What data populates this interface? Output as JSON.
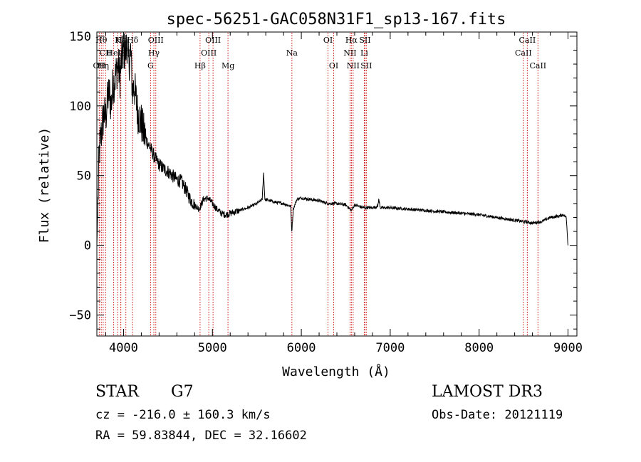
{
  "chart_data": {
    "type": "line",
    "title": "spec-56251-GAC058N31F1_sp13-167.fits",
    "xlabel": "Wavelength (Å)",
    "ylabel": "Flux (relative)",
    "xlim": [
      3700,
      9100
    ],
    "ylim": [
      -65,
      153
    ],
    "xticks": [
      4000,
      5000,
      6000,
      7000,
      8000,
      9000
    ],
    "yticks": [
      -50,
      0,
      50,
      100,
      150
    ],
    "x_minor_step": 200,
    "y_minor_step": 10,
    "grid": false,
    "spectrum_anchor_points": [
      [
        3700,
        0
      ],
      [
        3712,
        30
      ],
      [
        3725,
        65
      ],
      [
        3740,
        75
      ],
      [
        3760,
        85
      ],
      [
        3780,
        95
      ],
      [
        3800,
        92
      ],
      [
        3820,
        105
      ],
      [
        3840,
        110
      ],
      [
        3860,
        100
      ],
      [
        3880,
        115
      ],
      [
        3900,
        118
      ],
      [
        3920,
        125
      ],
      [
        3940,
        130
      ],
      [
        3960,
        120
      ],
      [
        3980,
        135
      ],
      [
        4000,
        140
      ],
      [
        4020,
        138
      ],
      [
        4040,
        145
      ],
      [
        4060,
        130
      ],
      [
        4080,
        140
      ],
      [
        4100,
        110
      ],
      [
        4120,
        115
      ],
      [
        4140,
        105
      ],
      [
        4160,
        95
      ],
      [
        4180,
        92
      ],
      [
        4200,
        88
      ],
      [
        4230,
        80
      ],
      [
        4260,
        75
      ],
      [
        4300,
        70
      ],
      [
        4350,
        63
      ],
      [
        4400,
        58
      ],
      [
        4450,
        55
      ],
      [
        4500,
        53
      ],
      [
        4550,
        50
      ],
      [
        4600,
        47
      ],
      [
        4650,
        46
      ],
      [
        4700,
        40
      ],
      [
        4750,
        33
      ],
      [
        4800,
        29
      ],
      [
        4850,
        26
      ],
      [
        4900,
        33
      ],
      [
        4950,
        34
      ],
      [
        5000,
        30
      ],
      [
        5050,
        26
      ],
      [
        5100,
        23
      ],
      [
        5150,
        22
      ],
      [
        5200,
        23
      ],
      [
        5300,
        25
      ],
      [
        5400,
        27
      ],
      [
        5500,
        30
      ],
      [
        5560,
        33
      ],
      [
        5575,
        52
      ],
      [
        5590,
        33
      ],
      [
        5700,
        31
      ],
      [
        5800,
        30
      ],
      [
        5880,
        28
      ],
      [
        5893,
        10
      ],
      [
        5910,
        26
      ],
      [
        5950,
        33
      ],
      [
        6000,
        34
      ],
      [
        6100,
        33
      ],
      [
        6200,
        32
      ],
      [
        6300,
        30
      ],
      [
        6400,
        30
      ],
      [
        6500,
        29
      ],
      [
        6563,
        25
      ],
      [
        6600,
        29
      ],
      [
        6700,
        27
      ],
      [
        6800,
        27
      ],
      [
        6860,
        28
      ],
      [
        6870,
        33
      ],
      [
        6890,
        27
      ],
      [
        7000,
        27
      ],
      [
        7200,
        26
      ],
      [
        7400,
        25
      ],
      [
        7600,
        24
      ],
      [
        7800,
        23
      ],
      [
        8000,
        22
      ],
      [
        8200,
        20
      ],
      [
        8400,
        18
      ],
      [
        8500,
        17
      ],
      [
        8600,
        16
      ],
      [
        8700,
        17
      ],
      [
        8800,
        20
      ],
      [
        8900,
        21
      ],
      [
        8950,
        22
      ],
      [
        8980,
        20
      ],
      [
        8990,
        10
      ],
      [
        9000,
        0
      ]
    ],
    "emission_lines": [
      {
        "wavelength": 3727,
        "label": "OII",
        "row": 3
      },
      {
        "wavelength": 3750,
        "label": "Hθ",
        "row": 1
      },
      {
        "wavelength": 3771,
        "label": "Hη",
        "row": 3
      },
      {
        "wavelength": 3798,
        "label": "CII",
        "row": 2
      },
      {
        "wavelength": 3889,
        "label": "HeI",
        "row": 2
      },
      {
        "wavelength": 3934,
        "label": "K",
        "row": 1
      },
      {
        "wavelength": 3968,
        "label": "H",
        "row": 3
      },
      {
        "wavelength": 3970,
        "label": "Hε",
        "row": 1
      },
      {
        "wavelength": 4026,
        "label": "SII",
        "row": 2
      },
      {
        "wavelength": 4102,
        "label": "Hδ",
        "row": 1
      },
      {
        "wavelength": 4304,
        "label": "G",
        "row": 3
      },
      {
        "wavelength": 4341,
        "label": "Hγ",
        "row": 2
      },
      {
        "wavelength": 4363,
        "label": "OIII",
        "row": 1
      },
      {
        "wavelength": 4861,
        "label": "Hβ",
        "row": 3
      },
      {
        "wavelength": 4959,
        "label": "OIII",
        "row": 2
      },
      {
        "wavelength": 5007,
        "label": "OIII",
        "row": 1
      },
      {
        "wavelength": 5175,
        "label": "Mg",
        "row": 3
      },
      {
        "wavelength": 5894,
        "label": "Na",
        "row": 2
      },
      {
        "wavelength": 6300,
        "label": "OI",
        "row": 1
      },
      {
        "wavelength": 6364,
        "label": "OI",
        "row": 3
      },
      {
        "wavelength": 6548,
        "label": "NII",
        "row": 2
      },
      {
        "wavelength": 6563,
        "label": "Hα",
        "row": 1
      },
      {
        "wavelength": 6583,
        "label": "NII",
        "row": 3
      },
      {
        "wavelength": 6708,
        "label": "Li",
        "row": 2
      },
      {
        "wavelength": 6716,
        "label": "SII",
        "row": 1
      },
      {
        "wavelength": 6731,
        "label": "SII",
        "row": 3
      },
      {
        "wavelength": 8498,
        "label": "CaII",
        "row": 2
      },
      {
        "wavelength": 8542,
        "label": "CaII",
        "row": 1
      },
      {
        "wavelength": 8662,
        "label": "CaII",
        "row": 3
      }
    ],
    "line_color": "#000000",
    "marker_color": "#cc0000"
  },
  "info": {
    "class": "STAR",
    "subclass": "G7",
    "survey": "LAMOST DR3",
    "cz": "cz = -216.0 ± 160.3 km/s",
    "obs_date": "Obs-Date: 20121119",
    "coords": "RA =  59.83844, DEC =  32.16602"
  }
}
